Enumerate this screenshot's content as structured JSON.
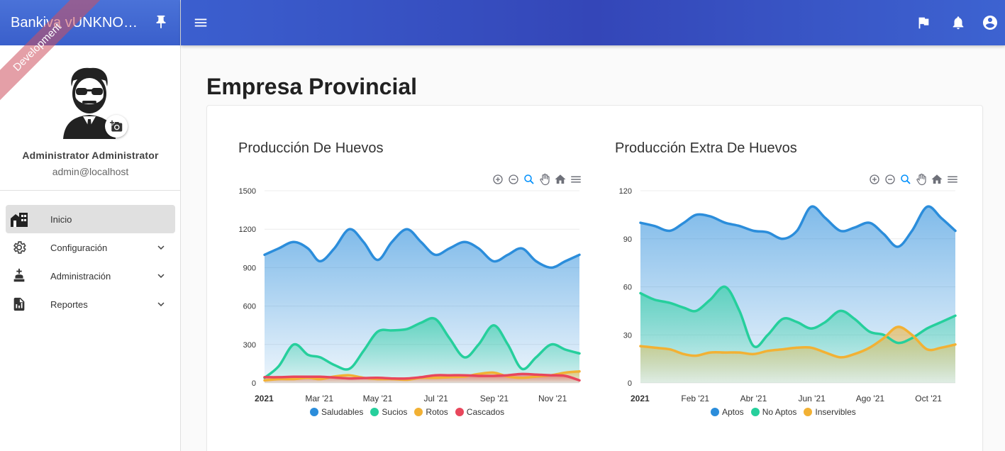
{
  "app": {
    "brand": "Bankiva vUNKNOWN",
    "ribbon": "Development"
  },
  "user": {
    "name": "Administrator Administrator",
    "email": "admin@localhost"
  },
  "nav": {
    "items": [
      {
        "label": "Inicio",
        "icon": "building-icon",
        "active": true
      },
      {
        "label": "Configuración",
        "icon": "gear-icon"
      },
      {
        "label": "Administración",
        "icon": "chess-piece-icon"
      },
      {
        "label": "Reportes",
        "icon": "report-icon"
      }
    ]
  },
  "page": {
    "title": "Empresa Provincial"
  },
  "colors": {
    "blue": "#2b8ddb",
    "green": "#26cf9c",
    "orange": "#f2b134",
    "red": "#e8475c"
  },
  "chart_data": [
    {
      "type": "area",
      "title": "Producción De Huevos",
      "x_ticks": [
        "2021",
        "Mar '21",
        "May '21",
        "Jul '21",
        "Sep '21",
        "Nov '21"
      ],
      "x": [
        "2021-01-01",
        "2021-01-16",
        "2021-02-01",
        "2021-02-16",
        "2021-03-01",
        "2021-03-16",
        "2021-04-01",
        "2021-04-16",
        "2021-05-01",
        "2021-05-16",
        "2021-06-01",
        "2021-06-16",
        "2021-07-01",
        "2021-07-16",
        "2021-08-01",
        "2021-08-16",
        "2021-09-01",
        "2021-09-16",
        "2021-10-01",
        "2021-10-16",
        "2021-11-01",
        "2021-11-16",
        "2021-12-01"
      ],
      "ylim": [
        0,
        1500
      ],
      "y_ticks": [
        "0",
        "300",
        "600",
        "900",
        "1200",
        "1500"
      ],
      "series": [
        {
          "name": "Saludables",
          "color": "#2b8ddb",
          "values": [
            1000,
            1050,
            1100,
            1050,
            950,
            1050,
            1200,
            1100,
            960,
            1100,
            1200,
            1100,
            1000,
            1050,
            1100,
            1050,
            950,
            1000,
            1050,
            950,
            900,
            950,
            1000
          ]
        },
        {
          "name": "Sucios",
          "color": "#26cf9c",
          "values": [
            40,
            130,
            300,
            220,
            200,
            140,
            110,
            250,
            400,
            410,
            420,
            470,
            500,
            350,
            200,
            300,
            450,
            300,
            110,
            200,
            300,
            260,
            230
          ]
        },
        {
          "name": "Rotos",
          "color": "#f2b134",
          "values": [
            20,
            30,
            30,
            40,
            30,
            50,
            60,
            40,
            30,
            30,
            25,
            40,
            40,
            45,
            50,
            70,
            80,
            50,
            40,
            50,
            60,
            80,
            90
          ]
        },
        {
          "name": "Cascados",
          "color": "#e8475c",
          "values": [
            45,
            45,
            48,
            48,
            48,
            42,
            35,
            38,
            40,
            35,
            35,
            45,
            60,
            60,
            60,
            55,
            55,
            60,
            70,
            65,
            60,
            55,
            20
          ]
        }
      ]
    },
    {
      "type": "area",
      "title": "Producción Extra De Huevos",
      "x_ticks": [
        "2021",
        "Feb '21",
        "Abr '21",
        "Jun '21",
        "Ago '21",
        "Oct '21"
      ],
      "x": [
        "2021-01-01",
        "2021-01-16",
        "2021-02-01",
        "2021-02-16",
        "2021-03-01",
        "2021-03-16",
        "2021-04-01",
        "2021-04-16",
        "2021-05-01",
        "2021-05-16",
        "2021-06-01",
        "2021-06-16",
        "2021-07-01",
        "2021-07-16",
        "2021-08-01",
        "2021-08-16",
        "2021-09-01",
        "2021-09-16",
        "2021-10-01",
        "2021-10-16",
        "2021-11-01",
        "2021-11-16",
        "2021-12-01"
      ],
      "ylim": [
        0,
        120
      ],
      "y_ticks": [
        "0",
        "30",
        "60",
        "90",
        "120"
      ],
      "series": [
        {
          "name": "Aptos",
          "color": "#2b8ddb",
          "values": [
            100,
            98,
            95,
            100,
            105,
            104,
            100,
            98,
            95,
            94,
            90,
            95,
            110,
            103,
            95,
            97,
            100,
            93,
            85,
            95,
            110,
            103,
            95
          ]
        },
        {
          "name": "No Aptos",
          "color": "#26cf9c",
          "values": [
            56,
            52,
            50,
            47,
            45,
            52,
            60,
            45,
            23,
            30,
            40,
            38,
            34,
            38,
            45,
            40,
            32,
            30,
            25,
            28,
            34,
            38,
            42
          ]
        },
        {
          "name": "Inservibles",
          "color": "#f2b134",
          "values": [
            23,
            22,
            21,
            18,
            17,
            19,
            19,
            19,
            18,
            20,
            21,
            22,
            22,
            19,
            16,
            18,
            22,
            28,
            35,
            30,
            21,
            22,
            24
          ]
        }
      ]
    }
  ]
}
